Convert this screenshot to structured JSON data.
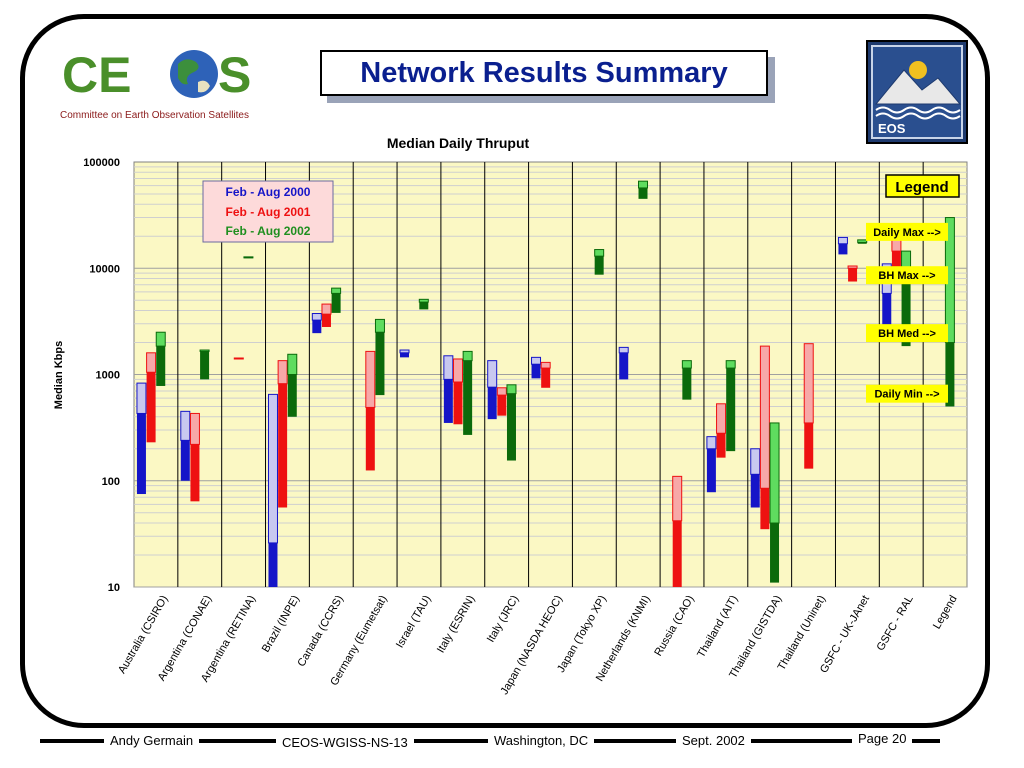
{
  "header": {
    "title": "Network Results Summary",
    "ceos_logo_text": "CEOS",
    "ceos_tagline": "Committee on Earth Observation Satellites",
    "eos_logo_text": "EOS"
  },
  "footer": {
    "author": "Andy Germain",
    "doc_id": "CEOS-WGISS-NS-13",
    "location": "Washington, DC",
    "date": "Sept. 2002",
    "page": "Page 20"
  },
  "colors": {
    "title_blue": "#0a1f8f",
    "plot_bg": "#fbf8c4",
    "y2000": "#1515c8",
    "y2000_light": "#c8c8f0",
    "y2000_cyan": "#3fa9f5",
    "y2001": "#ee1111",
    "y2001_light": "#f7a8a8",
    "y2002": "#0b6a0b",
    "y2002_light": "#5fdc5f",
    "legend_yellow": "#ffff00"
  },
  "chart_data": {
    "type": "bar",
    "subtype": "floating-range-log",
    "title": "Median Daily Thruput",
    "ylabel": "Median Kbps",
    "yscale": "log",
    "ylim": [
      10,
      100000
    ],
    "yticks": [
      "10",
      "100",
      "1000",
      "10000",
      "100000"
    ],
    "categories": [
      "Australia (CSIRO)",
      "Argentina (CONAE)",
      "Argentina (RETINA)",
      "Brazil (INPE)",
      "Canada (CCRS)",
      "Germany (Eumetsat)",
      "Israel (TAU)",
      "Italy (ESRIN)",
      "Italy (JRC)",
      "Japan (NASDA HEOC)",
      "Japan (Tokyo XP)",
      "Netherlands (KNMI)",
      "Russia (CAO)",
      "Thailand (AIT)",
      "Thailand (GISTDA)",
      "Thailand (Uninet)",
      "GSFC - UK-JAnet",
      "GSFC - RAL",
      "Legend"
    ],
    "series": [
      {
        "name": "Feb - Aug 2000",
        "color": "#1515c8",
        "values": [
          {
            "cat": 0,
            "min": 75,
            "med": 430,
            "max": 830
          },
          {
            "cat": 1,
            "min": 100,
            "med": 240,
            "max": 450
          },
          {
            "cat": 3,
            "min": 10,
            "med": 26,
            "max": 650
          },
          {
            "cat": 4,
            "min": 2450,
            "med": 3250,
            "max": 3750
          },
          {
            "cat": 6,
            "min": 1450,
            "med": 1600,
            "max": 1700
          },
          {
            "cat": 7,
            "min": 350,
            "med": 900,
            "max": 1500
          },
          {
            "cat": 8,
            "min": 380,
            "med": 760,
            "max": 1350
          },
          {
            "cat": 9,
            "min": 920,
            "med": 1250,
            "max": 1450
          },
          {
            "cat": 11,
            "min": 900,
            "med": 1600,
            "max": 1800
          },
          {
            "cat": 13,
            "min": 78,
            "med": 200,
            "max": 260
          },
          {
            "cat": 14,
            "min": 56,
            "med": 115,
            "max": 200
          },
          {
            "cat": 16,
            "min": 13500,
            "med": 17000,
            "max": 19500
          },
          {
            "cat": 17,
            "min": 2400,
            "med": 5800,
            "max": 11000
          }
        ]
      },
      {
        "name": "Feb - Aug 2001",
        "color": "#ee1111",
        "values": [
          {
            "cat": 0,
            "min": 230,
            "med": 1050,
            "max": 1600
          },
          {
            "cat": 1,
            "min": 64,
            "med": 220,
            "max": 430
          },
          {
            "cat": 2,
            "min": 1400,
            "med": 1420,
            "max": 1430
          },
          {
            "cat": 3,
            "min": 56,
            "med": 820,
            "max": 1350
          },
          {
            "cat": 4,
            "min": 2800,
            "med": 3700,
            "max": 4600
          },
          {
            "cat": 5,
            "min": 125,
            "med": 490,
            "max": 1650
          },
          {
            "cat": 7,
            "min": 340,
            "med": 850,
            "max": 1400
          },
          {
            "cat": 8,
            "min": 410,
            "med": 640,
            "max": 750
          },
          {
            "cat": 9,
            "min": 750,
            "med": 1150,
            "max": 1300
          },
          {
            "cat": 12,
            "min": 10,
            "med": 42,
            "max": 110
          },
          {
            "cat": 13,
            "min": 165,
            "med": 280,
            "max": 530
          },
          {
            "cat": 14,
            "min": 35,
            "med": 85,
            "max": 1850
          },
          {
            "cat": 15,
            "min": 130,
            "med": 350,
            "max": 1950
          },
          {
            "cat": 16,
            "min": 7500,
            "med": 10000,
            "max": 10500
          },
          {
            "cat": 17,
            "min": 9000,
            "med": 14500,
            "max": 18500
          }
        ]
      },
      {
        "name": "Feb - Aug 2002",
        "color": "#0b6a0b",
        "values": [
          {
            "cat": 0,
            "min": 780,
            "med": 1850,
            "max": 2500
          },
          {
            "cat": 1,
            "min": 900,
            "med": 1650,
            "max": 1700
          },
          {
            "cat": 2,
            "min": 12500,
            "med": 12700,
            "max": 12800
          },
          {
            "cat": 3,
            "min": 400,
            "med": 1000,
            "max": 1550
          },
          {
            "cat": 4,
            "min": 3800,
            "med": 5800,
            "max": 6500
          },
          {
            "cat": 5,
            "min": 640,
            "med": 2500,
            "max": 3300
          },
          {
            "cat": 6,
            "min": 4100,
            "med": 4800,
            "max": 5100
          },
          {
            "cat": 7,
            "min": 270,
            "med": 1350,
            "max": 1650
          },
          {
            "cat": 8,
            "min": 155,
            "med": 660,
            "max": 800
          },
          {
            "cat": 10,
            "min": 8700,
            "med": 13000,
            "max": 15000
          },
          {
            "cat": 11,
            "min": 45000,
            "med": 57000,
            "max": 66000
          },
          {
            "cat": 12,
            "min": 580,
            "med": 1150,
            "max": 1350
          },
          {
            "cat": 13,
            "min": 190,
            "med": 1150,
            "max": 1350
          },
          {
            "cat": 14,
            "min": 11,
            "med": 40,
            "max": 350
          },
          {
            "cat": 16,
            "min": 17000,
            "med": 17500,
            "max": 18500
          },
          {
            "cat": 17,
            "min": 1850,
            "med": 8000,
            "max": 14500
          },
          {
            "cat": 18,
            "min": 500,
            "med": 2000,
            "max": 30000
          }
        ]
      }
    ],
    "legend": {
      "placement": "top-left",
      "entries": [
        "Feb - Aug 2000",
        "Feb - Aug 2001",
        "Feb - Aug 2002"
      ]
    },
    "annotations": {
      "legend_title": "Legend",
      "labels": [
        {
          "text": "Daily Max -->",
          "value": 22000
        },
        {
          "text": "BH Max -->",
          "value": 8600
        },
        {
          "text": "BH Med -->",
          "value": 2450
        },
        {
          "text": "Daily Min -->",
          "value": 660
        }
      ]
    },
    "grid": true
  }
}
